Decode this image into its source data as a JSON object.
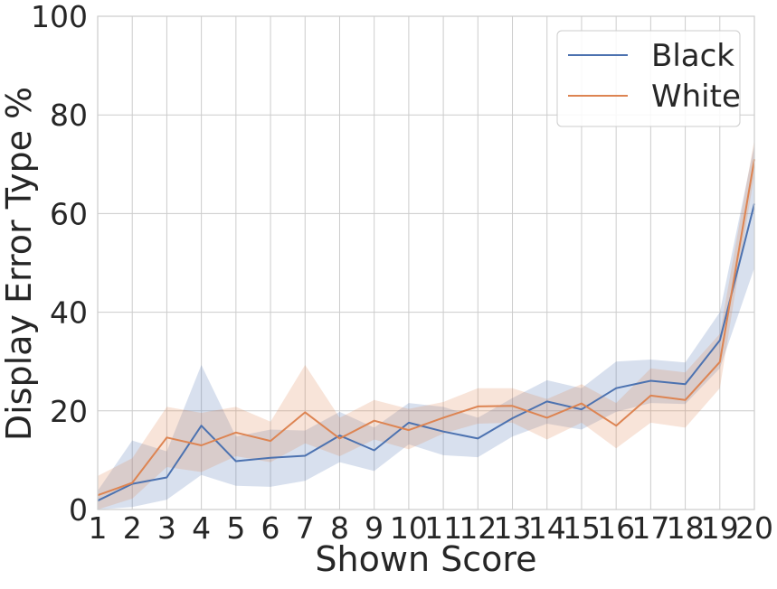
{
  "chart_data": {
    "type": "line",
    "title": "",
    "xlabel": "Shown Score",
    "ylabel": "Display Error Type %",
    "xlim": [
      1,
      20
    ],
    "ylim": [
      0,
      100
    ],
    "x": [
      1,
      2,
      3,
      4,
      5,
      6,
      7,
      8,
      9,
      10,
      11,
      12,
      13,
      14,
      15,
      16,
      17,
      18,
      19,
      20
    ],
    "x_ticks": [
      "1",
      "2",
      "3",
      "4",
      "5",
      "6",
      "7",
      "8",
      "9",
      "10",
      "11",
      "12",
      "13",
      "14",
      "15",
      "16",
      "17",
      "18",
      "19",
      "20"
    ],
    "y_ticks": [
      "0",
      "20",
      "40",
      "60",
      "80",
      "100"
    ],
    "y_tick_values": [
      0,
      20,
      40,
      60,
      80,
      100
    ],
    "grid": true,
    "legend_position": "top-right",
    "series": [
      {
        "name": "Black",
        "color": "#4c72b0",
        "values": [
          1.8,
          5.2,
          6.5,
          17.0,
          9.8,
          10.5,
          10.9,
          15.0,
          12.0,
          17.6,
          15.8,
          14.4,
          18.5,
          21.9,
          20.3,
          24.6,
          26.1,
          25.4,
          34.3,
          62.0
        ],
        "ci_low": [
          0.0,
          0.5,
          2.0,
          7.0,
          4.8,
          4.6,
          5.8,
          9.6,
          7.8,
          13.2,
          11.0,
          10.6,
          14.8,
          17.4,
          16.2,
          19.8,
          21.6,
          21.4,
          28.6,
          49.0
        ],
        "ci_high": [
          3.8,
          14.0,
          11.8,
          29.3,
          14.8,
          16.2,
          16.0,
          19.8,
          16.6,
          21.6,
          20.8,
          18.6,
          22.6,
          26.2,
          24.6,
          30.0,
          30.4,
          29.8,
          40.0,
          74.0
        ]
      },
      {
        "name": "White",
        "color": "#dd8452",
        "values": [
          2.9,
          5.4,
          14.6,
          13.0,
          15.6,
          13.9,
          19.7,
          14.4,
          18.0,
          16.1,
          18.6,
          20.9,
          21.0,
          18.6,
          21.5,
          17.0,
          23.1,
          22.2,
          29.9,
          71.0
        ],
        "ci_low": [
          0.0,
          2.2,
          8.6,
          7.6,
          10.8,
          9.6,
          13.4,
          10.8,
          14.2,
          12.2,
          15.4,
          17.4,
          17.6,
          14.2,
          17.6,
          12.4,
          17.6,
          16.6,
          24.6,
          68.0
        ],
        "ci_high": [
          6.8,
          10.4,
          20.8,
          19.6,
          20.8,
          17.8,
          29.3,
          18.6,
          22.2,
          20.4,
          21.8,
          24.6,
          24.6,
          22.4,
          25.4,
          21.6,
          28.6,
          27.8,
          35.6,
          75.0
        ]
      }
    ]
  }
}
